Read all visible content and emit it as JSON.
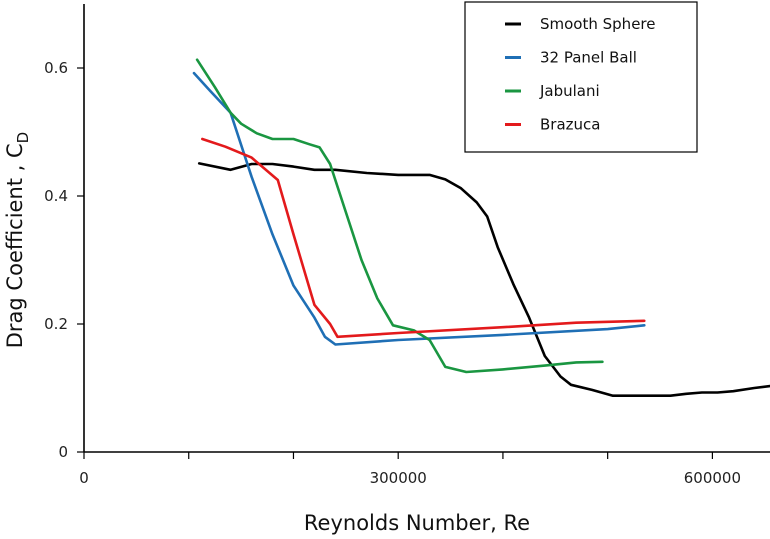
{
  "chart_data": {
    "type": "line",
    "title": "",
    "xlabel": "Reynolds Number, Re",
    "ylabel_main": "Drag Coefficient , C",
    "ylabel_sub": "D",
    "xlim": [
      0,
      655000
    ],
    "ylim": [
      0,
      0.7
    ],
    "x_ticks": [
      {
        "value": 0,
        "label": "0"
      },
      {
        "value": 300000,
        "label": "300000"
      },
      {
        "value": 600000,
        "label": "600000"
      }
    ],
    "x_minor_ticks": [
      100000,
      200000,
      400000,
      500000
    ],
    "y_ticks": [
      {
        "value": 0,
        "label": "0"
      },
      {
        "value": 0.2,
        "label": "0.2"
      },
      {
        "value": 0.4,
        "label": "0.4"
      },
      {
        "value": 0.6,
        "label": "0.6"
      }
    ],
    "grid": false,
    "legend_position": "top-right",
    "series": [
      {
        "name": "Smooth Sphere",
        "color": "#000000",
        "points": [
          [
            110000,
            0.451
          ],
          [
            140000,
            0.441
          ],
          [
            160000,
            0.45
          ],
          [
            180000,
            0.45
          ],
          [
            200000,
            0.446
          ],
          [
            220000,
            0.441
          ],
          [
            240000,
            0.441
          ],
          [
            270000,
            0.436
          ],
          [
            300000,
            0.433
          ],
          [
            330000,
            0.433
          ],
          [
            345000,
            0.426
          ],
          [
            360000,
            0.412
          ],
          [
            375000,
            0.39
          ],
          [
            385000,
            0.368
          ],
          [
            395000,
            0.32
          ],
          [
            410000,
            0.262
          ],
          [
            425000,
            0.21
          ],
          [
            440000,
            0.15
          ],
          [
            455000,
            0.118
          ],
          [
            465000,
            0.105
          ],
          [
            485000,
            0.097
          ],
          [
            505000,
            0.088
          ],
          [
            525000,
            0.088
          ],
          [
            545000,
            0.088
          ],
          [
            560000,
            0.088
          ],
          [
            575000,
            0.091
          ],
          [
            590000,
            0.093
          ],
          [
            605000,
            0.093
          ],
          [
            620000,
            0.095
          ],
          [
            640000,
            0.1
          ],
          [
            655000,
            0.103
          ]
        ]
      },
      {
        "name": "32 Panel Ball",
        "color": "#1f6fb5",
        "points": [
          [
            105000,
            0.592
          ],
          [
            120000,
            0.565
          ],
          [
            140000,
            0.53
          ],
          [
            160000,
            0.43
          ],
          [
            180000,
            0.34
          ],
          [
            200000,
            0.26
          ],
          [
            220000,
            0.21
          ],
          [
            230000,
            0.18
          ],
          [
            240000,
            0.168
          ],
          [
            300000,
            0.175
          ],
          [
            400000,
            0.183
          ],
          [
            500000,
            0.192
          ],
          [
            535000,
            0.198
          ]
        ]
      },
      {
        "name": "Jabulani",
        "color": "#1a9641",
        "points": [
          [
            108000,
            0.613
          ],
          [
            125000,
            0.57
          ],
          [
            140000,
            0.53
          ],
          [
            150000,
            0.513
          ],
          [
            165000,
            0.498
          ],
          [
            180000,
            0.489
          ],
          [
            200000,
            0.489
          ],
          [
            215000,
            0.481
          ],
          [
            225000,
            0.476
          ],
          [
            235000,
            0.45
          ],
          [
            250000,
            0.375
          ],
          [
            265000,
            0.3
          ],
          [
            280000,
            0.24
          ],
          [
            295000,
            0.198
          ],
          [
            315000,
            0.19
          ],
          [
            330000,
            0.175
          ],
          [
            345000,
            0.133
          ],
          [
            365000,
            0.125
          ],
          [
            400000,
            0.129
          ],
          [
            440000,
            0.135
          ],
          [
            470000,
            0.14
          ],
          [
            495000,
            0.141
          ]
        ]
      },
      {
        "name": "Brazuca",
        "color": "#e31a1c",
        "points": [
          [
            113000,
            0.489
          ],
          [
            135000,
            0.477
          ],
          [
            160000,
            0.46
          ],
          [
            185000,
            0.425
          ],
          [
            200000,
            0.34
          ],
          [
            220000,
            0.23
          ],
          [
            235000,
            0.2
          ],
          [
            242000,
            0.18
          ],
          [
            300000,
            0.186
          ],
          [
            400000,
            0.195
          ],
          [
            470000,
            0.202
          ],
          [
            535000,
            0.205
          ]
        ]
      }
    ]
  }
}
